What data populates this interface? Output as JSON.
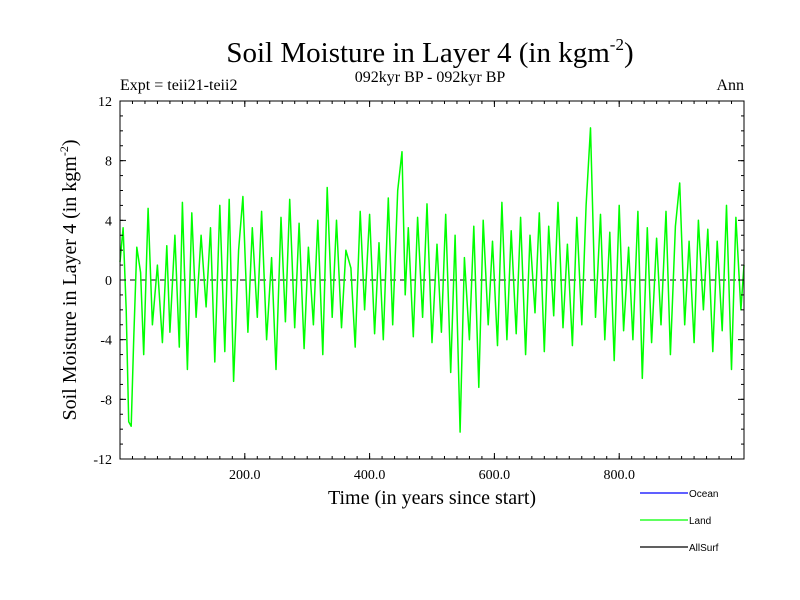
{
  "chart_data": {
    "type": "line",
    "title": "Soil Moisture in Layer 4 (in kgm",
    "title_sup": "-2",
    "title_close": ")",
    "subtitle": "092kyr BP - 092kyr BP",
    "left_label": "Expt = teii21-teii2",
    "right_label": "Ann",
    "xlabel": "Time (in years since start)",
    "ylabel": "Soil Moisture in Layer 4 (in kgm",
    "ylabel_sup": "-2",
    "ylabel_close": ")",
    "xlim": [
      0,
      1000
    ],
    "ylim": [
      -12,
      12
    ],
    "x_ticks": [
      200,
      400,
      600,
      800
    ],
    "x_tick_labels": [
      "200.0",
      "400.0",
      "600.0",
      "800.0"
    ],
    "y_ticks": [
      -12,
      -8,
      -4,
      0,
      4,
      8,
      12
    ],
    "y_tick_labels": [
      "-12",
      "-8",
      "-4",
      "0",
      "4",
      "8",
      "12"
    ],
    "legend_position": "bottom-right",
    "legend": [
      {
        "name": "Ocean",
        "color": "#0000ff"
      },
      {
        "name": "Land",
        "color": "#00ff00"
      },
      {
        "name": "AllSurf",
        "color": "#000000"
      }
    ],
    "zero_line_color": "#000000",
    "series": [
      {
        "name": "Land",
        "color": "#00ff00",
        "x": [
          0,
          5,
          10,
          14,
          18,
          22,
          27,
          33,
          38,
          45,
          52,
          60,
          68,
          75,
          80,
          88,
          95,
          100,
          108,
          115,
          122,
          130,
          138,
          145,
          152,
          160,
          168,
          175,
          182,
          190,
          197,
          205,
          212,
          220,
          227,
          235,
          243,
          250,
          258,
          265,
          272,
          280,
          287,
          295,
          302,
          310,
          317,
          325,
          332,
          340,
          347,
          355,
          362,
          370,
          377,
          385,
          392,
          400,
          408,
          415,
          422,
          430,
          437,
          445,
          452,
          457,
          462,
          470,
          477,
          485,
          492,
          500,
          508,
          515,
          522,
          530,
          537,
          545,
          552,
          560,
          567,
          575,
          582,
          590,
          597,
          605,
          612,
          620,
          627,
          635,
          642,
          650,
          657,
          665,
          672,
          680,
          687,
          695,
          702,
          710,
          717,
          725,
          732,
          740,
          747,
          754,
          762,
          770,
          777,
          785,
          792,
          800,
          807,
          815,
          822,
          830,
          837,
          845,
          852,
          860,
          867,
          875,
          882,
          890,
          897,
          905,
          912,
          920,
          927,
          935,
          942,
          950,
          957,
          965,
          972,
          980,
          987,
          995,
          1000
        ],
        "y": [
          1.2,
          3.5,
          -2.0,
          -9.5,
          -9.8,
          -4.0,
          2.2,
          0.5,
          -5.0,
          4.8,
          -3.0,
          1.0,
          -4.2,
          2.3,
          -3.5,
          3.0,
          -4.5,
          5.2,
          -6.0,
          4.5,
          -2.5,
          3.0,
          -1.8,
          3.5,
          -5.5,
          5.0,
          -4.8,
          5.4,
          -6.8,
          2.0,
          5.6,
          -3.5,
          3.5,
          -2.5,
          4.6,
          -4.0,
          1.5,
          -6.0,
          4.2,
          -2.8,
          5.4,
          -3.2,
          3.8,
          -4.6,
          2.2,
          -3.0,
          4.0,
          -5.0,
          6.2,
          -2.5,
          4.0,
          -3.2,
          2.0,
          0.8,
          -4.5,
          4.6,
          -2.0,
          4.4,
          -3.6,
          2.5,
          -4.0,
          5.5,
          -3.0,
          6.0,
          8.6,
          -1.0,
          3.5,
          -3.8,
          4.2,
          -2.5,
          5.1,
          -4.2,
          2.4,
          -3.5,
          4.4,
          -6.2,
          3.0,
          -10.2,
          1.5,
          -4.0,
          3.6,
          -7.2,
          4.0,
          -3.0,
          2.6,
          -4.4,
          5.2,
          -4.0,
          3.3,
          -3.6,
          4.2,
          -5.0,
          3.0,
          -2.2,
          4.5,
          -4.8,
          3.6,
          -2.4,
          5.2,
          -3.2,
          2.4,
          -4.4,
          4.2,
          -3.0,
          5.0,
          10.2,
          -2.5,
          4.4,
          -4.0,
          3.2,
          -5.4,
          5.0,
          -3.4,
          2.2,
          -4.0,
          4.6,
          -6.6,
          3.5,
          -4.2,
          2.8,
          -3.0,
          4.6,
          -5.0,
          3.6,
          6.5,
          -3.0,
          2.6,
          -4.2,
          4.0,
          -2.0,
          3.4,
          -4.8,
          2.6,
          -3.4,
          5.0,
          -6.0,
          4.2,
          -2.0,
          1.0
        ]
      }
    ]
  }
}
